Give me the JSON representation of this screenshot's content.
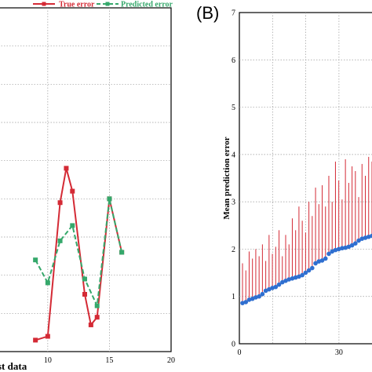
{
  "panel_b_label": "(B)",
  "colors": {
    "red": "#d42a35",
    "green": "#35a86b",
    "blue": "#2f6fd0",
    "grid": "#9a9a9a",
    "axis": "#000000"
  },
  "chart_data": [
    {
      "type": "line",
      "panel": "A",
      "xlabel": "st data",
      "ylabel": "",
      "xlim": [
        6,
        20
      ],
      "ylim": [
        0,
        9
      ],
      "x_ticks": [
        10,
        15,
        20
      ],
      "grid": true,
      "legend": "top",
      "series": [
        {
          "name": "True error",
          "color": "#d42a35",
          "marker": "square",
          "line": "solid",
          "x": [
            9,
            10,
            11,
            11.5,
            12,
            13,
            13.5,
            14,
            15,
            16
          ],
          "y": [
            0.3,
            0.4,
            3.9,
            4.8,
            4.2,
            1.5,
            0.7,
            0.9,
            4.0,
            2.6
          ]
        },
        {
          "name": "Predicted error",
          "color": "#35a86b",
          "marker": "square",
          "line": "dashed",
          "x": [
            9,
            10,
            11,
            12,
            13,
            14,
            15,
            16
          ],
          "y": [
            2.4,
            1.8,
            2.9,
            3.3,
            1.9,
            1.2,
            4.0,
            2.6
          ]
        }
      ]
    },
    {
      "type": "scatter",
      "panel": "B",
      "xlabel": "",
      "ylabel": "Mean prediction error",
      "xlim": [
        0,
        40
      ],
      "ylim": [
        0,
        7
      ],
      "x_ticks": [
        0,
        30
      ],
      "y_ticks": [
        0,
        1,
        2,
        3,
        4,
        5,
        6,
        7
      ],
      "grid": true,
      "note": "blue dots are sorted predicted errors; red stems rise from each dot to its true error",
      "series": [
        {
          "name": "",
          "role": "predicted",
          "color": "#2f6fd0",
          "x": [
            1,
            2,
            3,
            4,
            5,
            6,
            7,
            8,
            9,
            10,
            11,
            12,
            13,
            14,
            15,
            16,
            17,
            18,
            19,
            20,
            21,
            22,
            23,
            24,
            25,
            26,
            27,
            28,
            29,
            30,
            31,
            32,
            33,
            34,
            35,
            36,
            37,
            38,
            39,
            40
          ],
          "y": [
            0.86,
            0.88,
            0.93,
            0.95,
            0.98,
            1.0,
            1.05,
            1.12,
            1.15,
            1.18,
            1.2,
            1.25,
            1.3,
            1.33,
            1.36,
            1.38,
            1.4,
            1.42,
            1.45,
            1.5,
            1.55,
            1.6,
            1.7,
            1.74,
            1.76,
            1.8,
            1.9,
            1.95,
            1.98,
            2.0,
            2.02,
            2.03,
            2.05,
            2.08,
            2.12,
            2.18,
            2.22,
            2.24,
            2.26,
            2.28
          ]
        },
        {
          "name": "",
          "role": "true",
          "color": "#d42a35",
          "x": [
            1,
            2,
            3,
            4,
            5,
            6,
            7,
            8,
            9,
            10,
            11,
            12,
            13,
            14,
            15,
            16,
            17,
            18,
            19,
            20,
            21,
            22,
            23,
            24,
            25,
            26,
            27,
            28,
            29,
            30,
            31,
            32,
            33,
            34,
            35,
            36,
            37,
            38,
            39,
            40
          ],
          "y": [
            1.7,
            1.55,
            1.95,
            1.8,
            2.0,
            1.85,
            2.1,
            1.75,
            2.3,
            1.9,
            2.05,
            2.4,
            1.85,
            2.3,
            2.1,
            2.65,
            2.4,
            2.9,
            2.6,
            2.35,
            3.0,
            2.7,
            3.3,
            2.95,
            3.35,
            2.9,
            3.55,
            3.0,
            3.85,
            3.45,
            3.05,
            3.9,
            3.4,
            3.75,
            3.65,
            3.1,
            3.8,
            3.55,
            3.95,
            3.85
          ]
        }
      ]
    }
  ],
  "legend": {
    "true_error": "True error",
    "predicted_error": "Predicted error"
  },
  "panel_a_tick_labels": [
    "10",
    "15",
    "20"
  ],
  "panel_a_xlabel": "st data",
  "panel_b_tick_labels_y": [
    "0",
    "1",
    "2",
    "3",
    "4",
    "5",
    "6",
    "7"
  ],
  "panel_b_tick_labels_x": [
    "0",
    "30"
  ],
  "panel_b_ylabel": "Mean prediction error"
}
